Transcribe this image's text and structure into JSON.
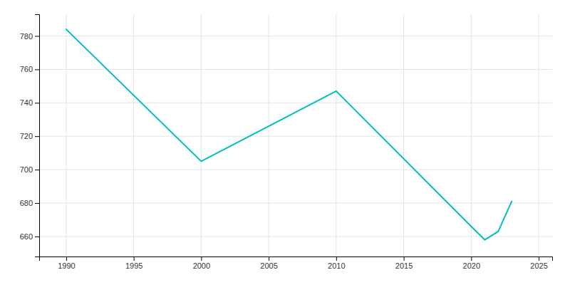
{
  "chart_data": {
    "type": "line",
    "x": [
      1990,
      2000,
      2010,
      2020,
      2021,
      2022,
      2023
    ],
    "values": [
      784,
      705,
      747,
      666,
      658,
      663,
      681
    ],
    "color": "#00BEBE",
    "xlim": [
      1988,
      2026
    ],
    "ylim": [
      648,
      793
    ],
    "xticks": [
      1990,
      1995,
      2000,
      2005,
      2010,
      2015,
      2020,
      2025
    ],
    "yticks": [
      660,
      680,
      700,
      720,
      740,
      760,
      780
    ],
    "grid": true
  }
}
